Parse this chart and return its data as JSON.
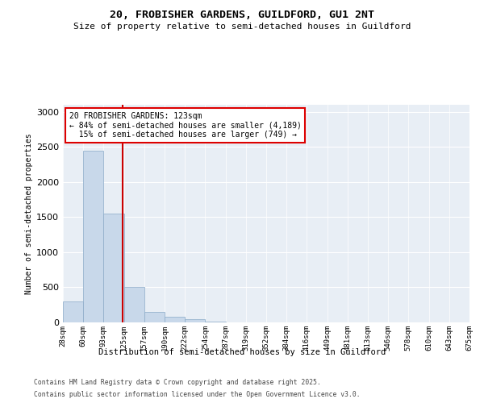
{
  "title1": "20, FROBISHER GARDENS, GUILDFORD, GU1 2NT",
  "title2": "Size of property relative to semi-detached houses in Guildford",
  "xlabel": "Distribution of semi-detached houses by size in Guildford",
  "ylabel": "Number of semi-detached properties",
  "bin_labels": [
    "28sqm",
    "60sqm",
    "93sqm",
    "125sqm",
    "157sqm",
    "190sqm",
    "222sqm",
    "254sqm",
    "287sqm",
    "319sqm",
    "352sqm",
    "384sqm",
    "416sqm",
    "449sqm",
    "481sqm",
    "513sqm",
    "546sqm",
    "578sqm",
    "610sqm",
    "643sqm",
    "675sqm"
  ],
  "bar_values": [
    300,
    2450,
    1550,
    500,
    150,
    75,
    50,
    10,
    5,
    2,
    1,
    0,
    0,
    0,
    0,
    0,
    0,
    0,
    0,
    0
  ],
  "bar_color": "#c8d8ea",
  "bar_edgecolor": "#8aaac8",
  "property_size": 123,
  "property_bin_index": 2,
  "property_label": "20 FROBISHER GARDENS: 123sqm",
  "smaller_pct": 84,
  "smaller_count": 4189,
  "larger_pct": 15,
  "larger_count": 749,
  "annotation_box_color": "#dd0000",
  "vline_color": "#cc0000",
  "ylim": [
    0,
    3100
  ],
  "yticks": [
    0,
    500,
    1000,
    1500,
    2000,
    2500,
    3000
  ],
  "footer1": "Contains HM Land Registry data © Crown copyright and database right 2025.",
  "footer2": "Contains public sector information licensed under the Open Government Licence v3.0.",
  "bg_color": "#ffffff",
  "plot_bg_color": "#e8eef5"
}
